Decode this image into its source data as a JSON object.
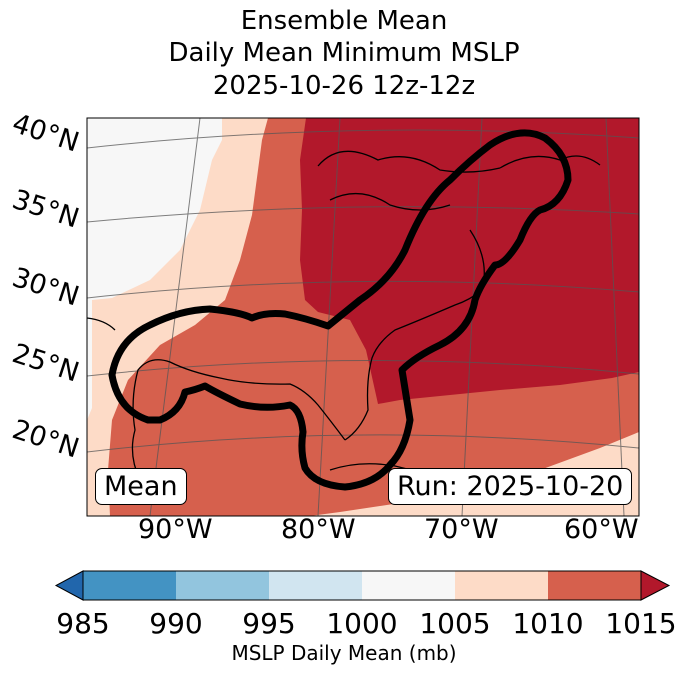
{
  "title": {
    "line1": "Ensemble Mean",
    "line2": "Daily Mean Minimum MSLP",
    "line3": "2025-10-26 12z-12z"
  },
  "map": {
    "lat_labels": [
      "40°N",
      "35°N",
      "30°N",
      "25°N",
      "20°N"
    ],
    "lon_labels": [
      "90°W",
      "80°W",
      "70°W",
      "60°W"
    ],
    "left_box": "Mean",
    "right_box": "Run: 2025-10-20"
  },
  "colorbar": {
    "ticks": [
      "985",
      "990",
      "995",
      "1000",
      "1005",
      "1010",
      "1015"
    ],
    "label": "MSLP Daily Mean (mb)",
    "colors": [
      "#2166ac",
      "#4393c3",
      "#92c5de",
      "#d1e5f0",
      "#f7f7f7",
      "#fddbc7",
      "#d6604d",
      "#b2182b"
    ]
  }
}
